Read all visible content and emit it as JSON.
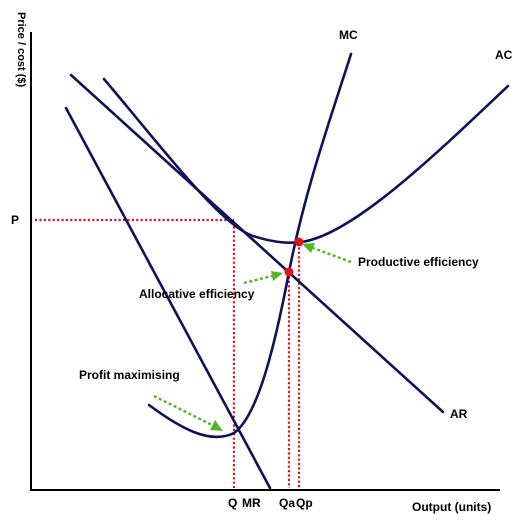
{
  "chart_data": {
    "type": "line",
    "ylabel": "Price / cost ($)",
    "xlabel": "Output (units)",
    "price_label": "P",
    "curves": [
      {
        "key": "mc",
        "name": "MC"
      },
      {
        "key": "ac",
        "name": "AC"
      },
      {
        "key": "ar",
        "name": "AR"
      },
      {
        "key": "mr",
        "name": "MR"
      }
    ],
    "quantity_labels": [
      {
        "key": "q",
        "label": "Q"
      },
      {
        "key": "qa",
        "label": "Qa"
      },
      {
        "key": "qp",
        "label": "Qp"
      }
    ],
    "annotations": [
      {
        "key": "productive",
        "text": "Productive efficiency"
      },
      {
        "key": "allocative",
        "text": "Allocative efficiency"
      },
      {
        "key": "profit",
        "text": "Profit maximising"
      }
    ],
    "grid": false,
    "legend": "none",
    "colors": {
      "curves": "#0d1259",
      "guides": "#e8101a",
      "points": "#e8101a",
      "arrows": "#52b52a",
      "axes": "#000000"
    }
  }
}
